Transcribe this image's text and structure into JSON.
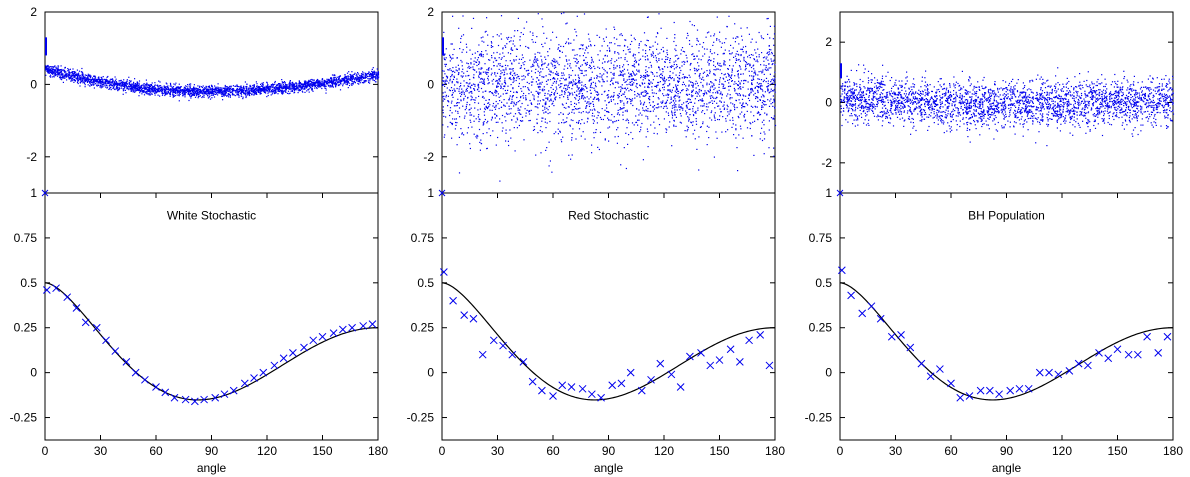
{
  "colors": {
    "points": "#0000ee",
    "curve": "#000000",
    "axis": "#000000"
  },
  "chart_data": [
    {
      "type": "scatter",
      "panel": "top-left",
      "xlim": [
        0,
        180
      ],
      "ylim": [
        -3,
        2
      ],
      "yticks": [
        2,
        0,
        -2
      ],
      "ytick_labels": [
        "2",
        "0",
        "-2"
      ],
      "xlabel": "",
      "distribution": {
        "trend": [
          0.45,
          -0.18,
          0.3
        ],
        "min_at": 85,
        "spread": 0.08,
        "n": 3000
      }
    },
    {
      "type": "scatter",
      "panel": "top-middle",
      "xlim": [
        0,
        180
      ],
      "ylim": [
        -3,
        2
      ],
      "yticks": [
        2,
        0,
        -2
      ],
      "ytick_labels": [
        "2",
        "0",
        "-2"
      ],
      "xlabel": "",
      "distribution": {
        "trend": [
          0.05,
          -0.05,
          0.05
        ],
        "min_at": 90,
        "spread": 0.75,
        "n": 3000
      }
    },
    {
      "type": "scatter",
      "panel": "top-right",
      "xlim": [
        0,
        180
      ],
      "ylim": [
        -3,
        3
      ],
      "yticks": [
        2,
        0,
        -2
      ],
      "ytick_labels": [
        "2",
        "0",
        "-2"
      ],
      "xlabel": "",
      "distribution": {
        "trend": [
          0.25,
          -0.05,
          0.1
        ],
        "min_at": 90,
        "spread": 0.38,
        "n": 3000
      }
    },
    {
      "type": "line",
      "panel": "bottom-left",
      "annotation": "White Stochastic",
      "xlim": [
        0,
        180
      ],
      "ylim": [
        -0.375,
        1
      ],
      "xticks": [
        0,
        30,
        60,
        90,
        120,
        150,
        180
      ],
      "xtick_labels": [
        "0",
        "30",
        "60",
        "90",
        "120",
        "150",
        "180"
      ],
      "yticks": [
        1,
        0.75,
        0.5,
        0.25,
        0,
        -0.25
      ],
      "ytick_labels": [
        "1",
        "0.75",
        "0.5",
        "0.25",
        "0",
        "-0.25"
      ],
      "xlabel": "angle",
      "curve": "hellings-downs",
      "x": [
        1,
        6,
        12,
        17,
        22,
        28,
        33,
        38,
        44,
        49,
        54,
        60,
        65,
        70,
        76,
        81,
        86,
        92,
        97,
        102,
        108,
        113,
        118,
        124,
        129,
        134,
        140,
        145,
        150,
        156,
        161,
        166,
        172,
        177
      ],
      "y": [
        0.46,
        0.47,
        0.42,
        0.36,
        0.28,
        0.25,
        0.18,
        0.12,
        0.06,
        0.0,
        -0.04,
        -0.08,
        -0.11,
        -0.14,
        -0.15,
        -0.16,
        -0.15,
        -0.14,
        -0.12,
        -0.1,
        -0.06,
        -0.03,
        0.0,
        0.04,
        0.08,
        0.11,
        0.14,
        0.18,
        0.2,
        0.22,
        0.24,
        0.25,
        0.26,
        0.27
      ]
    },
    {
      "type": "line",
      "panel": "bottom-middle",
      "annotation": "Red Stochastic",
      "xlim": [
        0,
        180
      ],
      "ylim": [
        -0.375,
        1
      ],
      "xticks": [
        0,
        30,
        60,
        90,
        120,
        150,
        180
      ],
      "xtick_labels": [
        "0",
        "30",
        "60",
        "90",
        "120",
        "150",
        "180"
      ],
      "yticks": [
        1,
        0.75,
        0.5,
        0.25,
        0,
        -0.25
      ],
      "ytick_labels": [
        "1",
        "0.75",
        "0.5",
        "0.25",
        "0",
        "-0.25"
      ],
      "xlabel": "angle",
      "curve": "hellings-downs",
      "x": [
        1,
        6,
        12,
        17,
        22,
        28,
        33,
        38,
        44,
        49,
        54,
        60,
        65,
        70,
        76,
        81,
        86,
        92,
        97,
        102,
        108,
        113,
        118,
        124,
        129,
        134,
        140,
        145,
        150,
        156,
        161,
        166,
        172,
        177
      ],
      "y": [
        0.56,
        0.4,
        0.32,
        0.3,
        0.1,
        0.18,
        0.15,
        0.1,
        0.06,
        -0.05,
        -0.1,
        -0.13,
        -0.07,
        -0.08,
        -0.09,
        -0.12,
        -0.14,
        -0.07,
        -0.06,
        0.0,
        -0.1,
        -0.04,
        0.05,
        -0.01,
        -0.08,
        0.09,
        0.11,
        0.04,
        0.07,
        0.13,
        0.06,
        0.18,
        0.21,
        0.04
      ]
    },
    {
      "type": "line",
      "panel": "bottom-right",
      "annotation": "BH Population",
      "xlim": [
        0,
        180
      ],
      "ylim": [
        -0.375,
        1
      ],
      "xticks": [
        0,
        30,
        60,
        90,
        120,
        150,
        180
      ],
      "xtick_labels": [
        "0",
        "30",
        "60",
        "90",
        "120",
        "150",
        "180"
      ],
      "yticks": [
        1,
        0.75,
        0.5,
        0.25,
        0,
        -0.25
      ],
      "ytick_labels": [
        "1",
        "0.75",
        "0.5",
        "0.25",
        "0",
        "-0.25"
      ],
      "xlabel": "angle",
      "curve": "hellings-downs",
      "x": [
        1,
        6,
        12,
        17,
        22,
        28,
        33,
        38,
        44,
        49,
        54,
        60,
        65,
        70,
        76,
        81,
        86,
        92,
        97,
        102,
        108,
        113,
        118,
        124,
        129,
        134,
        140,
        145,
        150,
        156,
        161,
        166,
        172,
        177
      ],
      "y": [
        0.57,
        0.43,
        0.33,
        0.37,
        0.3,
        0.2,
        0.21,
        0.14,
        0.05,
        -0.02,
        0.02,
        -0.06,
        -0.14,
        -0.13,
        -0.1,
        -0.1,
        -0.12,
        -0.1,
        -0.09,
        -0.09,
        0.0,
        0.0,
        -0.01,
        0.01,
        0.05,
        0.04,
        0.11,
        0.08,
        0.13,
        0.1,
        0.1,
        0.2,
        0.11,
        0.2
      ]
    }
  ]
}
